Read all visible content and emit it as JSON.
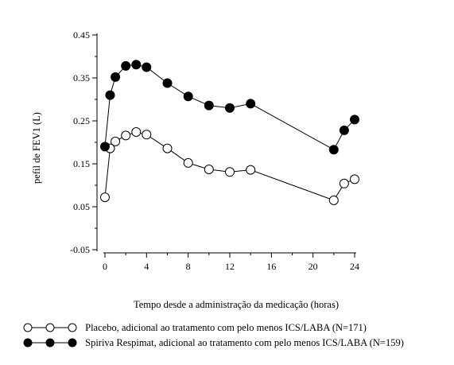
{
  "chart_data": {
    "type": "line",
    "title": "",
    "xlabel": "Tempo desde a administração da medicação (horas)",
    "ylabel": "pefil de FEV1 (L)",
    "xlim": [
      -1,
      25
    ],
    "ylim": [
      -0.1,
      0.47
    ],
    "x_ticks": [
      0,
      4,
      8,
      12,
      16,
      20,
      24
    ],
    "y_ticks": [
      -0.05,
      0.05,
      0.15,
      0.25,
      0.35,
      0.45
    ],
    "y_tick_labels": [
      "-0.05",
      "0.05",
      "0.15",
      "0.25",
      "0.35",
      "0.45"
    ],
    "grid": false,
    "legend_position": "bottom",
    "series": [
      {
        "name": "Placebo, adicional ao tratamento com pelo menos ICS/LABA (N=171)",
        "marker": "open-circle",
        "color": "#000000",
        "segments": [
          [
            [
              0,
              0.072
            ],
            [
              0.5,
              0.186
            ],
            [
              1,
              0.202
            ],
            [
              2,
              0.216
            ],
            [
              3,
              0.224
            ],
            [
              4,
              0.218
            ],
            [
              6,
              0.186
            ],
            [
              8,
              0.152
            ],
            [
              10,
              0.137
            ],
            [
              12,
              0.131
            ],
            [
              14,
              0.136
            ],
            [
              22,
              0.065
            ]
          ],
          [
            [
              22,
              0.065
            ],
            [
              23,
              0.104
            ],
            [
              24,
              0.114
            ]
          ]
        ]
      },
      {
        "name": "Spiriva Respimat, adicional ao tratamento com pelo menos ICS/LABA (N=159)",
        "marker": "filled-circle",
        "color": "#000000",
        "segments": [
          [
            [
              0,
              0.19
            ],
            [
              0.5,
              0.31
            ],
            [
              1,
              0.352
            ],
            [
              2,
              0.378
            ],
            [
              3,
              0.381
            ],
            [
              4,
              0.375
            ],
            [
              6,
              0.338
            ],
            [
              8,
              0.307
            ],
            [
              10,
              0.286
            ],
            [
              12,
              0.28
            ],
            [
              14,
              0.29
            ],
            [
              22,
              0.183
            ]
          ],
          [
            [
              22,
              0.183
            ],
            [
              23,
              0.228
            ],
            [
              24,
              0.253
            ]
          ]
        ]
      }
    ]
  },
  "legend": {
    "items": [
      {
        "label": "Placebo, adicional ao tratamento com pelo menos ICS/LABA (N=171)",
        "marker": "open-circle"
      },
      {
        "label": "Spiriva Respimat, adicional ao tratamento com pelo menos ICS/LABA (N=159)",
        "marker": "filled-circle"
      }
    ]
  }
}
